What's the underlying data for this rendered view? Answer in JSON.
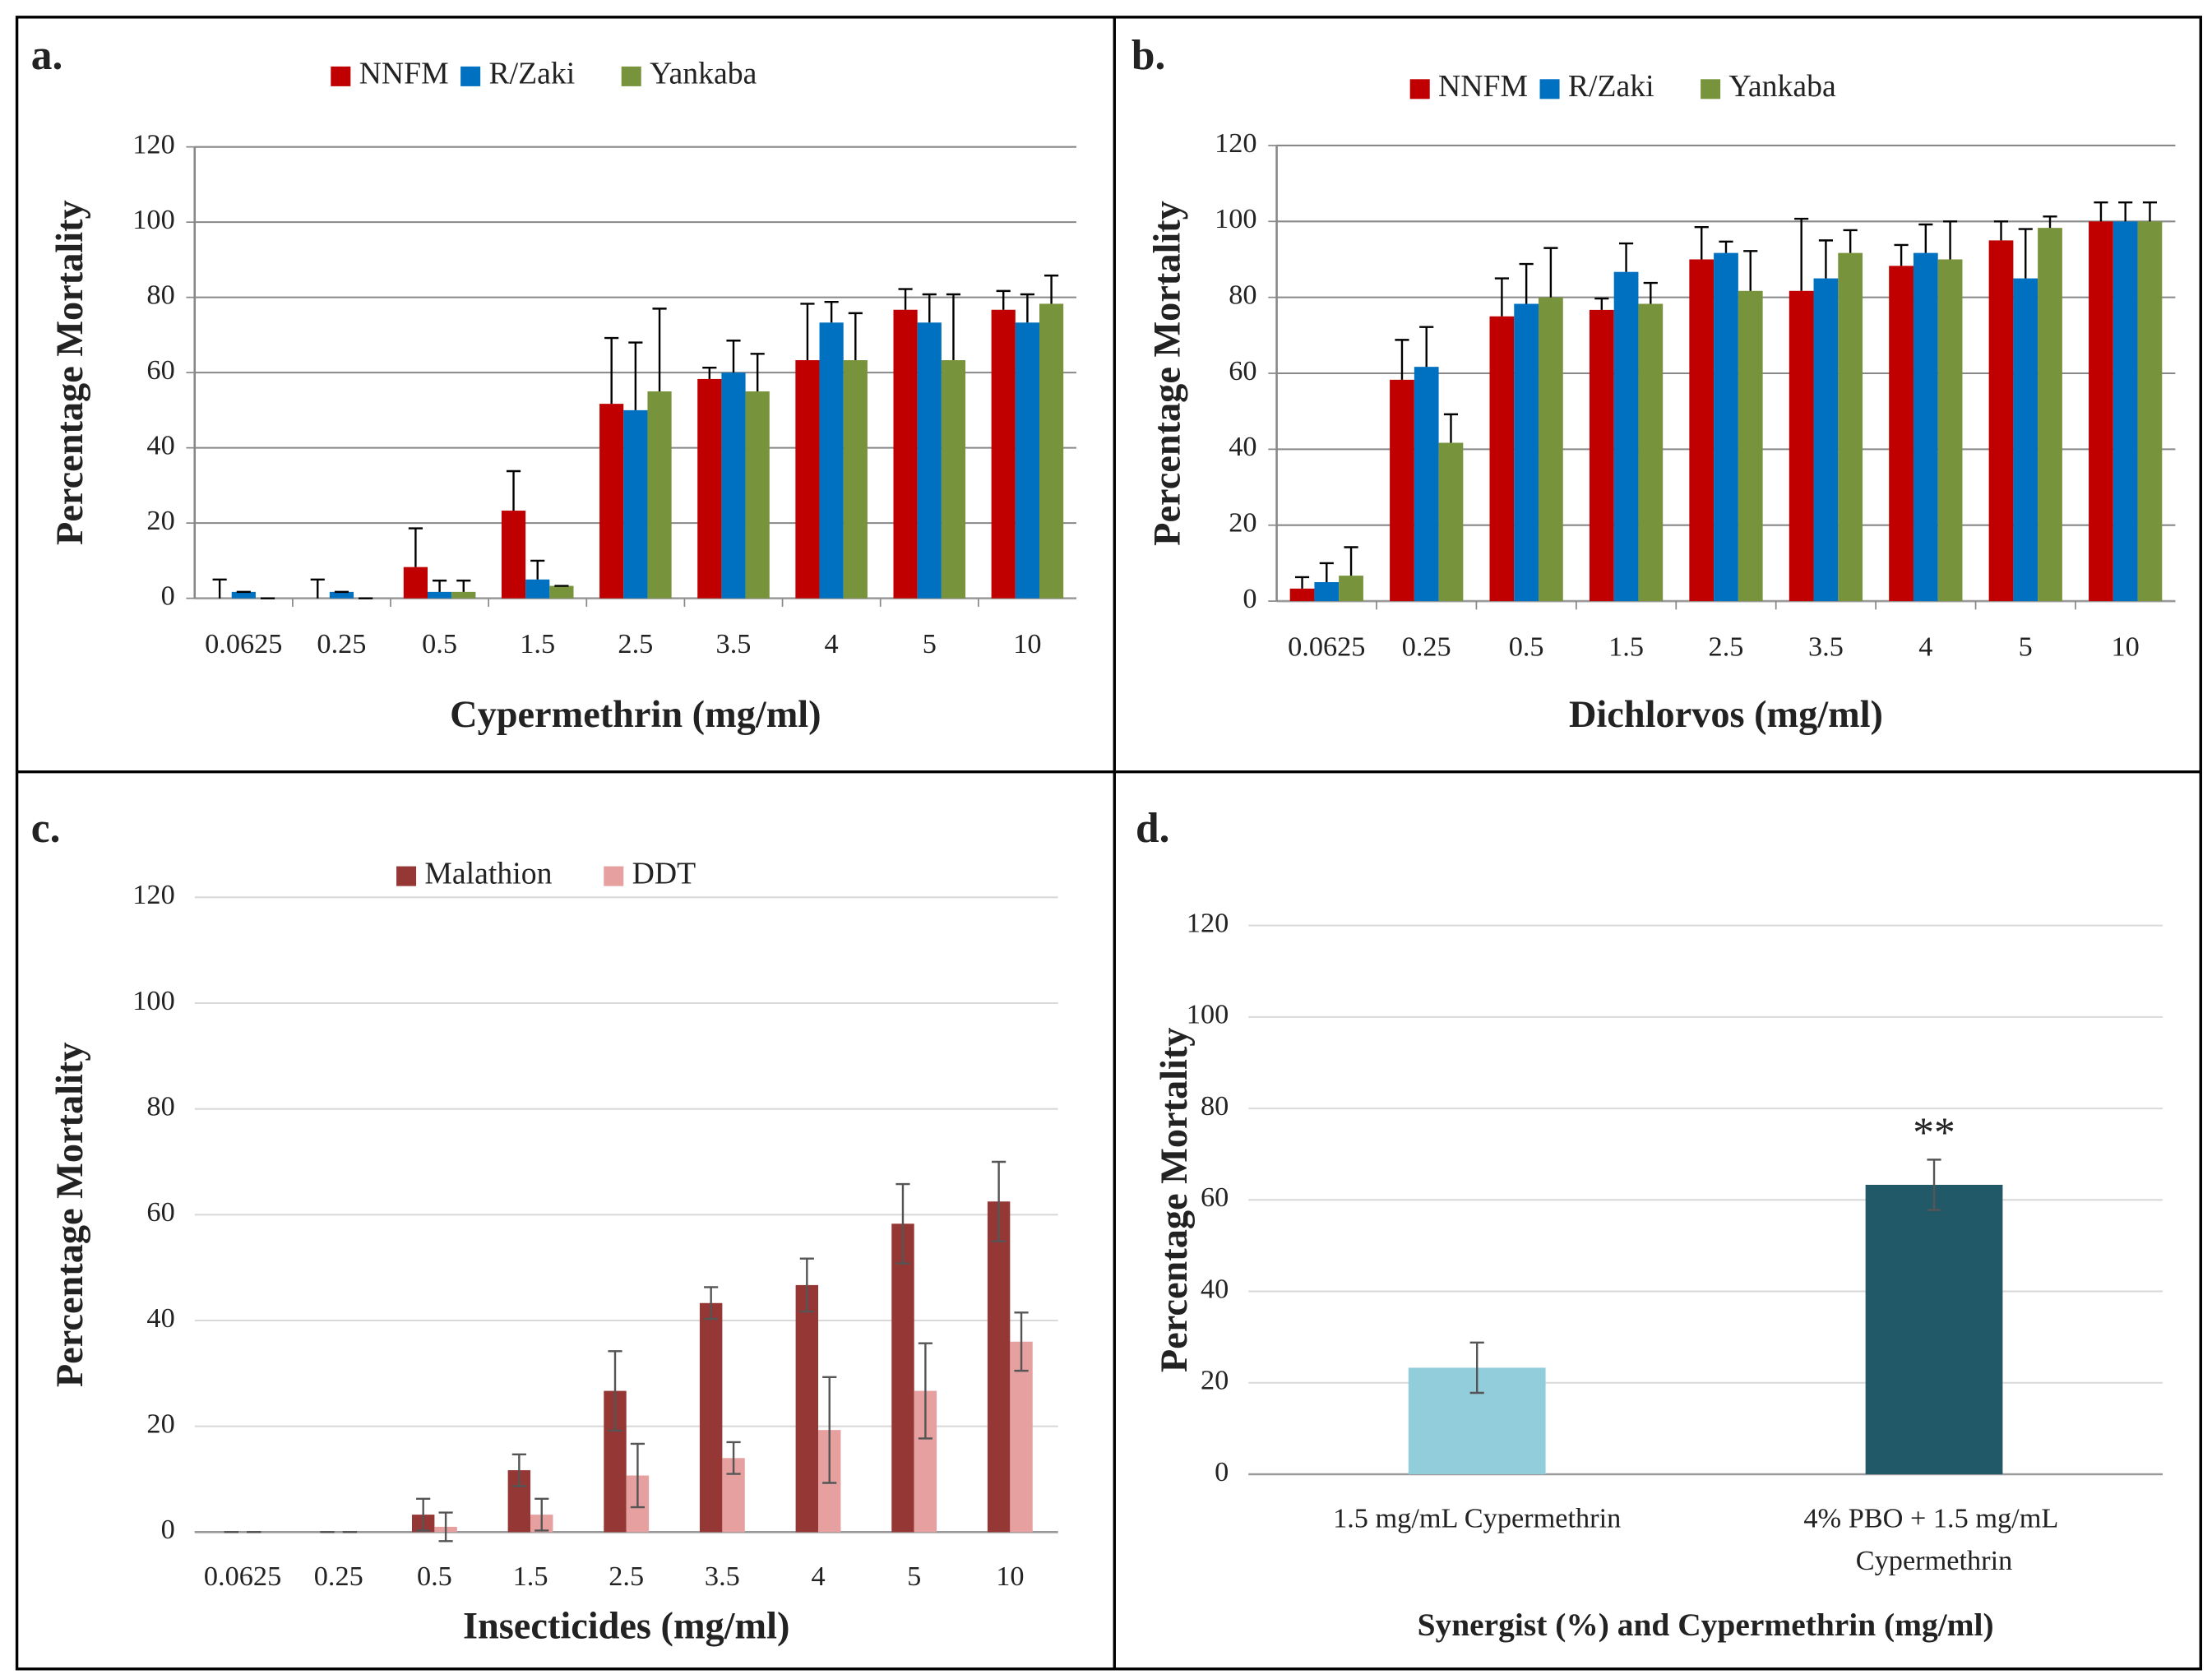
{
  "chart_data": [
    {
      "type": "bar",
      "panel_label": "a.",
      "x_label": "Cypermethrin (mg/ml)",
      "y_label": "Percentage Mortality",
      "categories": [
        "0.0625",
        "0.25",
        "0.5",
        "1.5",
        "2.5",
        "3.5",
        "4",
        "5",
        "10"
      ],
      "series": [
        {
          "name": "NNFM",
          "color": "#c00000",
          "values": [
            0,
            0,
            8.3,
            23.3,
            51.7,
            58.3,
            63.3,
            76.7,
            76.7
          ],
          "errors": [
            5,
            5,
            10.3,
            10.5,
            17.5,
            3,
            15,
            5.5,
            5
          ]
        },
        {
          "name": "R/Zaki",
          "color": "#0070c0",
          "values": [
            1.7,
            1.7,
            1.7,
            5,
            50,
            60,
            73.3,
            73.3,
            73.3
          ],
          "errors": [
            0,
            0,
            3,
            5,
            18,
            8.5,
            5.5,
            7.5,
            7.5
          ]
        },
        {
          "name": "Yankaba",
          "color": "#77933c",
          "values": [
            0,
            0,
            1.7,
            3.3,
            55,
            55,
            63.3,
            63.3,
            78.3
          ],
          "errors": [
            0,
            0,
            3,
            0,
            22,
            10,
            12.5,
            17.5,
            7.5
          ]
        }
      ],
      "error_bar": "upper",
      "ylim": [
        0,
        120
      ],
      "yticks": [
        0,
        20,
        40,
        60,
        80,
        100,
        120
      ],
      "grid": true,
      "legend": "top"
    },
    {
      "type": "bar",
      "panel_label": "b.",
      "x_label": "Dichlorvos (mg/ml)",
      "y_label": "Percentage Mortality",
      "categories": [
        "0.0625",
        "0.25",
        "0.5",
        "1.5",
        "2.5",
        "3.5",
        "4",
        "5",
        "10"
      ],
      "series": [
        {
          "name": "NNFM",
          "color": "#c00000",
          "values": [
            3.3,
            58.3,
            75,
            76.7,
            90,
            81.7,
            88.3,
            95,
            100
          ],
          "errors": [
            3,
            10.5,
            10,
            3,
            8.5,
            19,
            5.5,
            5,
            5
          ]
        },
        {
          "name": "R/Zaki",
          "color": "#0070c0",
          "values": [
            5,
            61.7,
            78.3,
            86.7,
            91.7,
            85,
            91.7,
            85,
            100
          ],
          "errors": [
            5,
            10.5,
            10.5,
            7.5,
            3,
            10,
            7.5,
            13,
            5
          ]
        },
        {
          "name": "Yankaba",
          "color": "#77933c",
          "values": [
            6.7,
            41.7,
            80,
            78.3,
            81.7,
            91.7,
            90,
            98.3,
            100
          ],
          "errors": [
            7.5,
            7.5,
            13,
            5.5,
            10.5,
            6,
            10,
            3,
            5
          ]
        }
      ],
      "error_bar": "upper",
      "ylim": [
        0,
        120
      ],
      "yticks": [
        0,
        20,
        40,
        60,
        80,
        100,
        120
      ],
      "grid": true,
      "legend": "top"
    },
    {
      "type": "bar",
      "panel_label": "c.",
      "x_label": "Insecticides (mg/ml)",
      "y_label": "Percentage Mortality",
      "categories": [
        "0.0625",
        "0.25",
        "0.5",
        "1.5",
        "2.5",
        "3.5",
        "4",
        "5",
        "10"
      ],
      "series": [
        {
          "name": "Malathion",
          "color": "#953735",
          "values": [
            0,
            0,
            3.3,
            11.7,
            26.7,
            43.3,
            46.7,
            58.3,
            62.5
          ],
          "errors": [
            0,
            0,
            3,
            3,
            7.5,
            3,
            5,
            7.5,
            7.5
          ]
        },
        {
          "name": "DDT",
          "color": "#e6a0a0",
          "values": [
            0,
            0,
            1,
            3.3,
            10.7,
            14,
            19.3,
            26.7,
            36
          ],
          "errors": [
            0,
            0,
            2.7,
            3,
            6,
            3,
            10,
            9,
            5.5
          ]
        }
      ],
      "error_bar": "both",
      "ylim": [
        0,
        120
      ],
      "yticks": [
        0,
        20,
        40,
        60,
        80,
        100,
        120
      ],
      "grid": true,
      "legend": "top"
    },
    {
      "type": "bar",
      "panel_label": "d.",
      "x_label": "Synergist (%) and Cypermethrin (mg/ml)",
      "y_label": "Percentage Mortality",
      "categories": [
        "1.5 mg/mL Cypermethrin",
        "4% PBO + 1.5 mg/mL Cypermethrin"
      ],
      "values": [
        23.3,
        63.3
      ],
      "errors": [
        5.5,
        5.5
      ],
      "colors": [
        "#92cddc",
        "#215968"
      ],
      "annotation": "**",
      "error_bar": "both",
      "ylim": [
        0,
        120
      ],
      "yticks": [
        0,
        20,
        40,
        60,
        80,
        100,
        120
      ],
      "grid": true
    }
  ]
}
